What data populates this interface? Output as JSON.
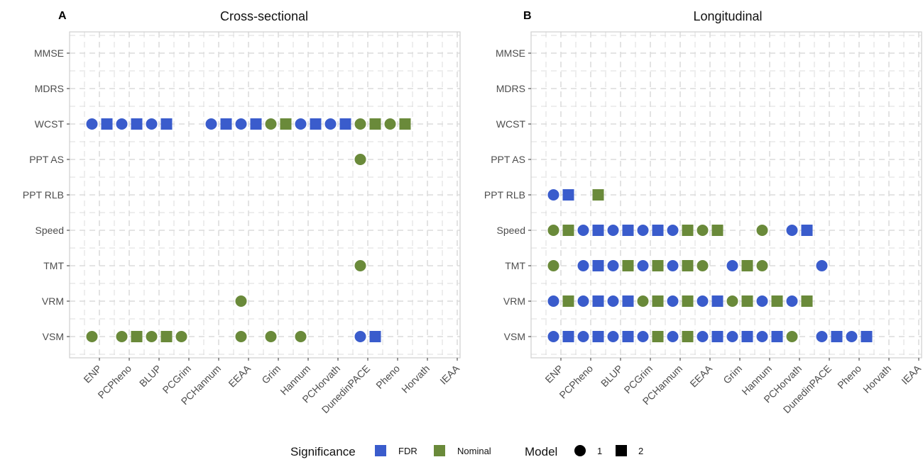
{
  "colors": {
    "FDR": "#3a5ccc",
    "Nominal": "#6a8a3a",
    "grid": "#dcdcdc",
    "panel_border": "#cfcfcf",
    "text": "#4d4d4d"
  },
  "legend": {
    "significance_title": "Significance",
    "significance_items": [
      {
        "label": "FDR",
        "color": "#3a5ccc"
      },
      {
        "label": "Nominal",
        "color": "#6a8a3a"
      }
    ],
    "model_title": "Model",
    "model_items": [
      {
        "label": "1",
        "shape": "circle"
      },
      {
        "label": "2",
        "shape": "square"
      }
    ]
  },
  "chart_data": [
    {
      "type": "scatter",
      "panel_label": "A",
      "title": "Cross-sectional",
      "xlabel": "",
      "ylabel": "",
      "grid": true,
      "categories_x": [
        "ENP",
        "PCPheno",
        "BLUP",
        "PCGrim",
        "PCHannum",
        "EEAA",
        "Grim",
        "Hannum",
        "PCHorvath",
        "DunedinPACE",
        "Pheno",
        "Horvath",
        "IEAA"
      ],
      "categories_y": [
        "MMSE",
        "MDRS",
        "WCST",
        "PPT AS",
        "PPT RLB",
        "Speed",
        "TMT",
        "VRM",
        "VSM"
      ],
      "points": [
        {
          "x": "ENP",
          "y": "WCST",
          "model": 1,
          "sig": "FDR"
        },
        {
          "x": "ENP",
          "y": "WCST",
          "model": 2,
          "sig": "FDR"
        },
        {
          "x": "PCPheno",
          "y": "WCST",
          "model": 1,
          "sig": "FDR"
        },
        {
          "x": "PCPheno",
          "y": "WCST",
          "model": 2,
          "sig": "FDR"
        },
        {
          "x": "BLUP",
          "y": "WCST",
          "model": 1,
          "sig": "FDR"
        },
        {
          "x": "BLUP",
          "y": "WCST",
          "model": 2,
          "sig": "FDR"
        },
        {
          "x": "PCHannum",
          "y": "WCST",
          "model": 1,
          "sig": "FDR"
        },
        {
          "x": "PCHannum",
          "y": "WCST",
          "model": 2,
          "sig": "FDR"
        },
        {
          "x": "EEAA",
          "y": "WCST",
          "model": 1,
          "sig": "FDR"
        },
        {
          "x": "EEAA",
          "y": "WCST",
          "model": 2,
          "sig": "FDR"
        },
        {
          "x": "Grim",
          "y": "WCST",
          "model": 1,
          "sig": "Nominal"
        },
        {
          "x": "Grim",
          "y": "WCST",
          "model": 2,
          "sig": "Nominal"
        },
        {
          "x": "Hannum",
          "y": "WCST",
          "model": 1,
          "sig": "FDR"
        },
        {
          "x": "Hannum",
          "y": "WCST",
          "model": 2,
          "sig": "FDR"
        },
        {
          "x": "PCHorvath",
          "y": "WCST",
          "model": 1,
          "sig": "FDR"
        },
        {
          "x": "PCHorvath",
          "y": "WCST",
          "model": 2,
          "sig": "FDR"
        },
        {
          "x": "DunedinPACE",
          "y": "WCST",
          "model": 1,
          "sig": "Nominal"
        },
        {
          "x": "DunedinPACE",
          "y": "WCST",
          "model": 2,
          "sig": "Nominal"
        },
        {
          "x": "Pheno",
          "y": "WCST",
          "model": 1,
          "sig": "Nominal"
        },
        {
          "x": "Pheno",
          "y": "WCST",
          "model": 2,
          "sig": "Nominal"
        },
        {
          "x": "DunedinPACE",
          "y": "PPT AS",
          "model": 1,
          "sig": "Nominal"
        },
        {
          "x": "DunedinPACE",
          "y": "TMT",
          "model": 1,
          "sig": "Nominal"
        },
        {
          "x": "EEAA",
          "y": "VRM",
          "model": 1,
          "sig": "Nominal"
        },
        {
          "x": "ENP",
          "y": "VSM",
          "model": 1,
          "sig": "Nominal"
        },
        {
          "x": "PCPheno",
          "y": "VSM",
          "model": 1,
          "sig": "Nominal"
        },
        {
          "x": "PCPheno",
          "y": "VSM",
          "model": 2,
          "sig": "Nominal"
        },
        {
          "x": "BLUP",
          "y": "VSM",
          "model": 1,
          "sig": "Nominal"
        },
        {
          "x": "BLUP",
          "y": "VSM",
          "model": 2,
          "sig": "Nominal"
        },
        {
          "x": "PCGrim",
          "y": "VSM",
          "model": 1,
          "sig": "Nominal"
        },
        {
          "x": "EEAA",
          "y": "VSM",
          "model": 1,
          "sig": "Nominal"
        },
        {
          "x": "Grim",
          "y": "VSM",
          "model": 1,
          "sig": "Nominal"
        },
        {
          "x": "Hannum",
          "y": "VSM",
          "model": 1,
          "sig": "Nominal"
        },
        {
          "x": "DunedinPACE",
          "y": "VSM",
          "model": 1,
          "sig": "FDR"
        },
        {
          "x": "DunedinPACE",
          "y": "VSM",
          "model": 2,
          "sig": "FDR"
        }
      ]
    },
    {
      "type": "scatter",
      "panel_label": "B",
      "title": "Longitudinal",
      "xlabel": "",
      "ylabel": "",
      "grid": true,
      "categories_x": [
        "ENP",
        "PCPheno",
        "BLUP",
        "PCGrim",
        "PCHannum",
        "EEAA",
        "Grim",
        "Hannum",
        "PCHorvath",
        "DunedinPACE",
        "Pheno",
        "Horvath",
        "IEAA"
      ],
      "categories_y": [
        "MMSE",
        "MDRS",
        "WCST",
        "PPT AS",
        "PPT RLB",
        "Speed",
        "TMT",
        "VRM",
        "VSM"
      ],
      "points": [
        {
          "x": "ENP",
          "y": "PPT RLB",
          "model": 1,
          "sig": "FDR"
        },
        {
          "x": "ENP",
          "y": "PPT RLB",
          "model": 2,
          "sig": "FDR"
        },
        {
          "x": "PCPheno",
          "y": "PPT RLB",
          "model": 2,
          "sig": "Nominal"
        },
        {
          "x": "ENP",
          "y": "Speed",
          "model": 1,
          "sig": "Nominal"
        },
        {
          "x": "ENP",
          "y": "Speed",
          "model": 2,
          "sig": "Nominal"
        },
        {
          "x": "PCPheno",
          "y": "Speed",
          "model": 1,
          "sig": "FDR"
        },
        {
          "x": "PCPheno",
          "y": "Speed",
          "model": 2,
          "sig": "FDR"
        },
        {
          "x": "BLUP",
          "y": "Speed",
          "model": 1,
          "sig": "FDR"
        },
        {
          "x": "BLUP",
          "y": "Speed",
          "model": 2,
          "sig": "FDR"
        },
        {
          "x": "PCGrim",
          "y": "Speed",
          "model": 1,
          "sig": "FDR"
        },
        {
          "x": "PCGrim",
          "y": "Speed",
          "model": 2,
          "sig": "FDR"
        },
        {
          "x": "PCHannum",
          "y": "Speed",
          "model": 1,
          "sig": "FDR"
        },
        {
          "x": "PCHannum",
          "y": "Speed",
          "model": 2,
          "sig": "Nominal"
        },
        {
          "x": "EEAA",
          "y": "Speed",
          "model": 1,
          "sig": "Nominal"
        },
        {
          "x": "EEAA",
          "y": "Speed",
          "model": 2,
          "sig": "Nominal"
        },
        {
          "x": "Hannum",
          "y": "Speed",
          "model": 1,
          "sig": "Nominal"
        },
        {
          "x": "PCHorvath",
          "y": "Speed",
          "model": 1,
          "sig": "FDR"
        },
        {
          "x": "PCHorvath",
          "y": "Speed",
          "model": 2,
          "sig": "FDR"
        },
        {
          "x": "ENP",
          "y": "TMT",
          "model": 1,
          "sig": "Nominal"
        },
        {
          "x": "PCPheno",
          "y": "TMT",
          "model": 1,
          "sig": "FDR"
        },
        {
          "x": "PCPheno",
          "y": "TMT",
          "model": 2,
          "sig": "FDR"
        },
        {
          "x": "BLUP",
          "y": "TMT",
          "model": 1,
          "sig": "FDR"
        },
        {
          "x": "BLUP",
          "y": "TMT",
          "model": 2,
          "sig": "Nominal"
        },
        {
          "x": "PCGrim",
          "y": "TMT",
          "model": 1,
          "sig": "FDR"
        },
        {
          "x": "PCGrim",
          "y": "TMT",
          "model": 2,
          "sig": "Nominal"
        },
        {
          "x": "PCHannum",
          "y": "TMT",
          "model": 1,
          "sig": "FDR"
        },
        {
          "x": "PCHannum",
          "y": "TMT",
          "model": 2,
          "sig": "Nominal"
        },
        {
          "x": "EEAA",
          "y": "TMT",
          "model": 1,
          "sig": "Nominal"
        },
        {
          "x": "Grim",
          "y": "TMT",
          "model": 1,
          "sig": "FDR"
        },
        {
          "x": "Grim",
          "y": "TMT",
          "model": 2,
          "sig": "Nominal"
        },
        {
          "x": "Hannum",
          "y": "TMT",
          "model": 1,
          "sig": "Nominal"
        },
        {
          "x": "DunedinPACE",
          "y": "TMT",
          "model": 1,
          "sig": "FDR"
        },
        {
          "x": "ENP",
          "y": "VRM",
          "model": 1,
          "sig": "FDR"
        },
        {
          "x": "ENP",
          "y": "VRM",
          "model": 2,
          "sig": "Nominal"
        },
        {
          "x": "PCPheno",
          "y": "VRM",
          "model": 1,
          "sig": "FDR"
        },
        {
          "x": "PCPheno",
          "y": "VRM",
          "model": 2,
          "sig": "FDR"
        },
        {
          "x": "BLUP",
          "y": "VRM",
          "model": 1,
          "sig": "FDR"
        },
        {
          "x": "BLUP",
          "y": "VRM",
          "model": 2,
          "sig": "FDR"
        },
        {
          "x": "PCGrim",
          "y": "VRM",
          "model": 1,
          "sig": "Nominal"
        },
        {
          "x": "PCGrim",
          "y": "VRM",
          "model": 2,
          "sig": "Nominal"
        },
        {
          "x": "PCHannum",
          "y": "VRM",
          "model": 1,
          "sig": "FDR"
        },
        {
          "x": "PCHannum",
          "y": "VRM",
          "model": 2,
          "sig": "Nominal"
        },
        {
          "x": "EEAA",
          "y": "VRM",
          "model": 1,
          "sig": "FDR"
        },
        {
          "x": "EEAA",
          "y": "VRM",
          "model": 2,
          "sig": "FDR"
        },
        {
          "x": "Grim",
          "y": "VRM",
          "model": 1,
          "sig": "Nominal"
        },
        {
          "x": "Grim",
          "y": "VRM",
          "model": 2,
          "sig": "Nominal"
        },
        {
          "x": "Hannum",
          "y": "VRM",
          "model": 1,
          "sig": "FDR"
        },
        {
          "x": "Hannum",
          "y": "VRM",
          "model": 2,
          "sig": "Nominal"
        },
        {
          "x": "PCHorvath",
          "y": "VRM",
          "model": 1,
          "sig": "FDR"
        },
        {
          "x": "PCHorvath",
          "y": "VRM",
          "model": 2,
          "sig": "Nominal"
        },
        {
          "x": "ENP",
          "y": "VSM",
          "model": 1,
          "sig": "FDR"
        },
        {
          "x": "ENP",
          "y": "VSM",
          "model": 2,
          "sig": "FDR"
        },
        {
          "x": "PCPheno",
          "y": "VSM",
          "model": 1,
          "sig": "FDR"
        },
        {
          "x": "PCPheno",
          "y": "VSM",
          "model": 2,
          "sig": "FDR"
        },
        {
          "x": "BLUP",
          "y": "VSM",
          "model": 1,
          "sig": "FDR"
        },
        {
          "x": "BLUP",
          "y": "VSM",
          "model": 2,
          "sig": "FDR"
        },
        {
          "x": "PCGrim",
          "y": "VSM",
          "model": 1,
          "sig": "FDR"
        },
        {
          "x": "PCGrim",
          "y": "VSM",
          "model": 2,
          "sig": "Nominal"
        },
        {
          "x": "PCHannum",
          "y": "VSM",
          "model": 1,
          "sig": "FDR"
        },
        {
          "x": "PCHannum",
          "y": "VSM",
          "model": 2,
          "sig": "Nominal"
        },
        {
          "x": "EEAA",
          "y": "VSM",
          "model": 1,
          "sig": "FDR"
        },
        {
          "x": "EEAA",
          "y": "VSM",
          "model": 2,
          "sig": "FDR"
        },
        {
          "x": "Grim",
          "y": "VSM",
          "model": 1,
          "sig": "FDR"
        },
        {
          "x": "Grim",
          "y": "VSM",
          "model": 2,
          "sig": "FDR"
        },
        {
          "x": "Hannum",
          "y": "VSM",
          "model": 1,
          "sig": "FDR"
        },
        {
          "x": "Hannum",
          "y": "VSM",
          "model": 2,
          "sig": "FDR"
        },
        {
          "x": "PCHorvath",
          "y": "VSM",
          "model": 1,
          "sig": "Nominal"
        },
        {
          "x": "DunedinPACE",
          "y": "VSM",
          "model": 1,
          "sig": "FDR"
        },
        {
          "x": "DunedinPACE",
          "y": "VSM",
          "model": 2,
          "sig": "FDR"
        },
        {
          "x": "Pheno",
          "y": "VSM",
          "model": 1,
          "sig": "FDR"
        },
        {
          "x": "Pheno",
          "y": "VSM",
          "model": 2,
          "sig": "FDR"
        }
      ]
    }
  ]
}
